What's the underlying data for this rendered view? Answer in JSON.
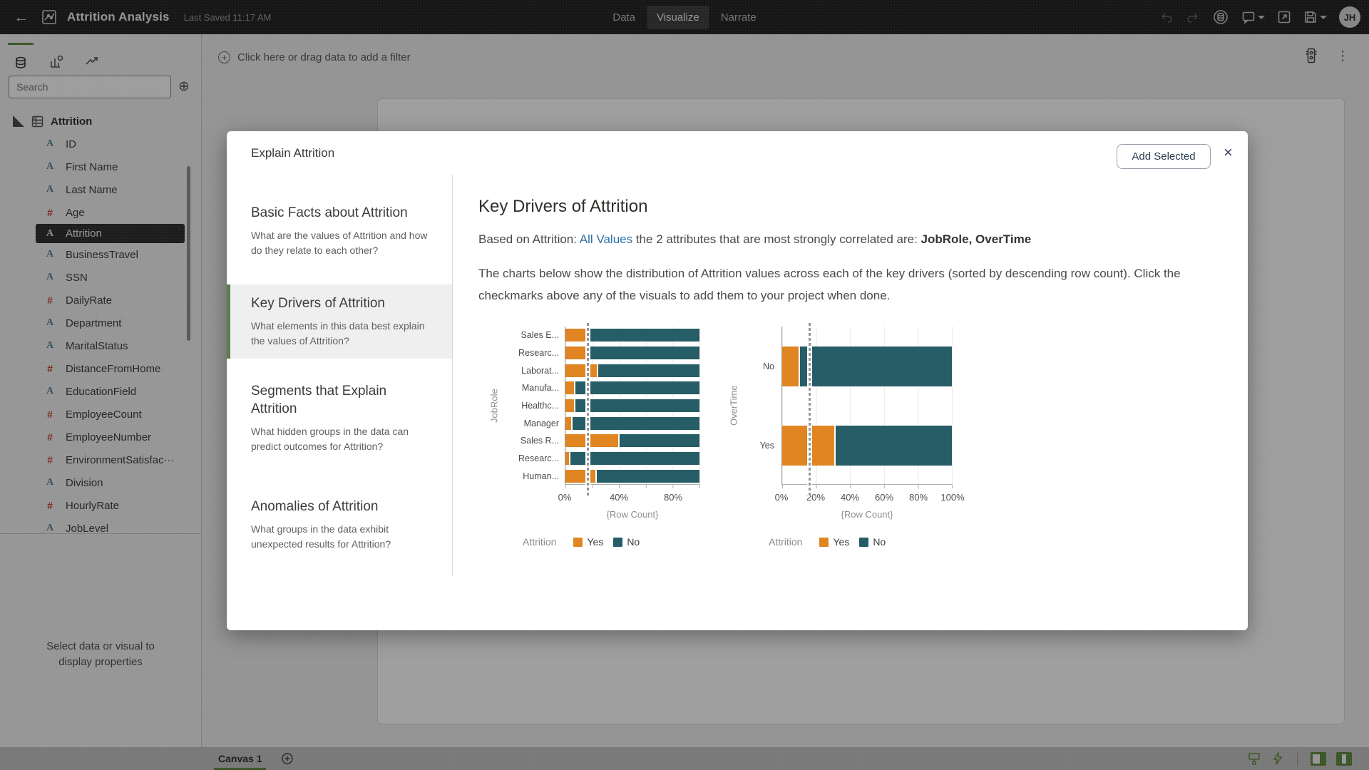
{
  "topbar": {
    "title": "Attrition Analysis",
    "last_saved": "Last Saved 11:17 AM",
    "tabs": [
      {
        "label": "Data",
        "active": false
      },
      {
        "label": "Visualize",
        "active": true
      },
      {
        "label": "Narrate",
        "active": false
      }
    ],
    "avatar_initials": "JH"
  },
  "sidebar": {
    "search_placeholder": "Search",
    "dataset_name": "Attrition",
    "fields": [
      {
        "name": "ID",
        "type": "text"
      },
      {
        "name": "First Name",
        "type": "text"
      },
      {
        "name": "Last Name",
        "type": "text"
      },
      {
        "name": "Age",
        "type": "number"
      },
      {
        "name": "Attrition",
        "type": "text",
        "selected": true
      },
      {
        "name": "BusinessTravel",
        "type": "text"
      },
      {
        "name": "SSN",
        "type": "text"
      },
      {
        "name": "DailyRate",
        "type": "number"
      },
      {
        "name": "Department",
        "type": "text"
      },
      {
        "name": "MaritalStatus",
        "type": "text"
      },
      {
        "name": "DistanceFromHome",
        "type": "number"
      },
      {
        "name": "EducationField",
        "type": "text"
      },
      {
        "name": "EmployeeCount",
        "type": "number"
      },
      {
        "name": "EmployeeNumber",
        "type": "number"
      },
      {
        "name": "EnvironmentSatisfac···",
        "type": "number"
      },
      {
        "name": "Division",
        "type": "text"
      },
      {
        "name": "HourlyRate",
        "type": "number"
      },
      {
        "name": "JobLevel",
        "type": "text"
      }
    ],
    "properties_hint": "Select data or visual to display properties"
  },
  "filterbar": {
    "label": "Click here or drag data to add a filter"
  },
  "bottombar": {
    "canvas_tab": "Canvas 1"
  },
  "dialog": {
    "title": "Explain Attrition",
    "add_selected_label": "Add Selected",
    "close_label": "×",
    "menu": [
      {
        "title": "Basic Facts about Attrition",
        "description": "What are the values of Attrition and how do they relate to each other?",
        "selected": false
      },
      {
        "title": "Key Drivers of Attrition",
        "description": "What elements in this data best explain the values of Attrition?",
        "selected": true
      },
      {
        "title": "Segments that Explain Attrition",
        "description": "What hidden groups in the data can predict outcomes for Attrition?",
        "selected": false
      },
      {
        "title": "Anomalies of Attrition",
        "description": "What groups in the data exhibit unexpected results for Attrition?",
        "selected": false
      }
    ],
    "content": {
      "heading": "Key Drivers of Attrition",
      "line1_prefix": "Based on Attrition: ",
      "line1_link": "All Values",
      "line1_middle": " the 2 attributes that are most strongly correlated are: ",
      "line1_bold": "JobRole, OverTime",
      "paragraph": "The charts below show the distribution of Attrition values across each of the key drivers (sorted by descending row count). Click the checkmarks above any of the visuals to add them to your project when done."
    }
  },
  "colors": {
    "attrition_yes": "#E08521",
    "attrition_no": "#265D67",
    "accent_green": "#5F8C3F",
    "menu_selected_green": "#5C7D4E",
    "link_blue": "#2E71A8"
  },
  "chart_data": [
    {
      "type": "bar",
      "stacked": true,
      "orientation": "horizontal",
      "ylabel": "JobRole",
      "xlabel": "{Row Count}",
      "categories": [
        "Sales E...",
        "Researc...",
        "Laborat...",
        "Manufa...",
        "Healthc...",
        "Manager",
        "Sales R...",
        "Researc...",
        "Human..."
      ],
      "series": [
        {
          "name": "Yes",
          "color": "#E08521",
          "values": [
            16,
            16,
            24,
            7,
            7,
            5,
            40,
            3,
            23
          ]
        },
        {
          "name": "No",
          "color": "#265D67",
          "values": [
            84,
            84,
            76,
            93,
            93,
            95,
            60,
            97,
            77
          ]
        }
      ],
      "xlim": [
        0,
        100
      ],
      "x_tick_values": [
        0,
        40,
        80
      ],
      "x_tick_labels": [
        "0%",
        "40%",
        "80%"
      ],
      "grid_step": 20,
      "reference_line": 16.5,
      "legend_title": "Attrition",
      "legend_position": "bottom"
    },
    {
      "type": "bar",
      "stacked": true,
      "orientation": "horizontal",
      "ylabel": "OverTime",
      "xlabel": "{Row Count}",
      "categories": [
        "No",
        "Yes"
      ],
      "series": [
        {
          "name": "Yes",
          "color": "#E08521",
          "values": [
            10,
            31
          ]
        },
        {
          "name": "No",
          "color": "#265D67",
          "values": [
            90,
            69
          ]
        }
      ],
      "xlim": [
        0,
        100
      ],
      "x_tick_values": [
        0,
        20,
        40,
        60,
        80,
        100
      ],
      "x_tick_labels": [
        "0%",
        "20%",
        "40%",
        "60%",
        "80%",
        "100%"
      ],
      "grid_step": 20,
      "reference_line": 16,
      "legend_title": "Attrition",
      "legend_position": "bottom"
    }
  ]
}
